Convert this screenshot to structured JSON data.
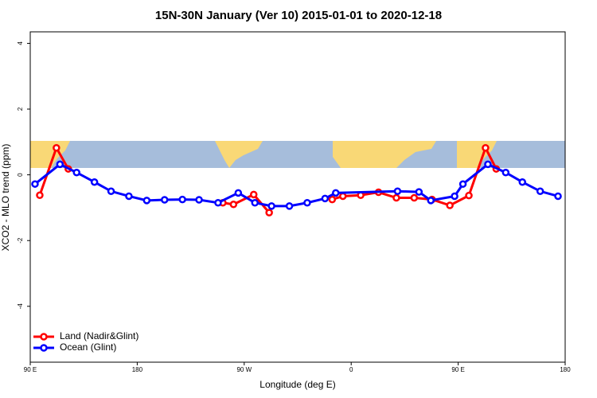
{
  "chart_data": {
    "type": "line",
    "title": "15N-30N January (Ver 10)   2015-01-01 to 2020-12-18",
    "xlabel": "Longitude (deg E)",
    "ylabel": "XCO2 - MLO trend (ppm)",
    "xlim": [
      90,
      540
    ],
    "ylim": [
      -5.7,
      4.35
    ],
    "xticks": [
      {
        "value": 90,
        "label": "90 E"
      },
      {
        "value": 180,
        "label": "180"
      },
      {
        "value": 270,
        "label": "90 W"
      },
      {
        "value": 360,
        "label": "0"
      },
      {
        "value": 450,
        "label": "90 E"
      },
      {
        "value": 540,
        "label": "180"
      }
    ],
    "yticks": [
      -4,
      -2,
      0,
      2,
      4
    ],
    "legend": "bottom-left",
    "series": [
      {
        "name": "Land (Nadir&Glint)",
        "color": "#ff0000",
        "x": [
          98,
          112,
          122,
          187,
          252,
          261,
          278,
          291,
          318,
          344,
          353,
          368,
          383,
          398,
          413,
          428,
          443,
          459,
          473,
          482
        ],
        "values": [
          -0.62,
          0.82,
          0.18,
          null,
          -0.85,
          -0.9,
          -0.6,
          -1.15,
          null,
          -0.75,
          -0.65,
          -0.62,
          -0.53,
          -0.7,
          -0.7,
          -0.75,
          -0.93,
          -0.63,
          0.82,
          0.18
        ]
      },
      {
        "name": "Ocean (Glint)",
        "color": "#0000ff",
        "x": [
          94,
          115,
          129,
          144,
          158,
          173,
          188,
          203,
          218,
          232,
          248,
          265,
          279,
          293,
          308,
          323,
          338,
          347,
          399,
          417,
          427,
          447,
          454,
          475,
          490,
          504,
          519,
          534
        ],
        "values": [
          -0.28,
          0.32,
          0.07,
          -0.22,
          -0.5,
          -0.65,
          -0.78,
          -0.76,
          -0.75,
          -0.76,
          -0.85,
          -0.55,
          -0.85,
          -0.95,
          -0.95,
          -0.85,
          -0.72,
          -0.55,
          -0.5,
          -0.52,
          -0.78,
          -0.65,
          -0.28,
          0.32,
          0.07,
          -0.22,
          -0.5,
          -0.65
        ]
      }
    ]
  }
}
